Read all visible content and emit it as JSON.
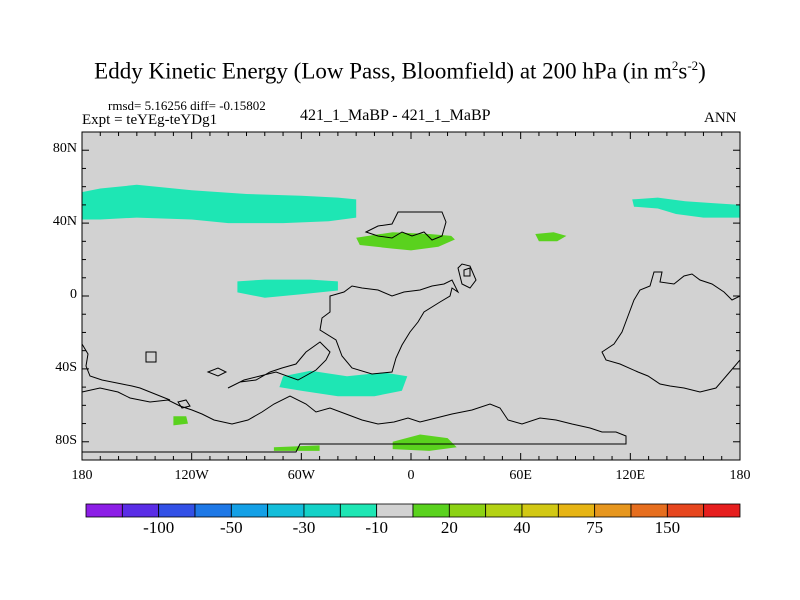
{
  "header": {
    "title_main": "Eddy Kinetic Energy (Low Pass, Bloomfield) at 200 hPa (in m",
    "title_exp1": "2",
    "title_mid": "s",
    "title_exp2": "-2",
    "title_end": ")",
    "stats": "rmsd= 5.16256 diff= -0.15802",
    "expt": "Expt = teYEg-teYDg1",
    "cases": "421_1_MaBP - 421_1_MaBP",
    "season": "ANN"
  },
  "chart_data": {
    "type": "contour-map",
    "projection": "cylindrical-equidistant",
    "lon_range": [
      -180,
      180
    ],
    "lat_range": [
      -90,
      90
    ],
    "x_ticks": [
      {
        "lon": -180,
        "label": "180"
      },
      {
        "lon": -120,
        "label": "120W"
      },
      {
        "lon": -60,
        "label": "60W"
      },
      {
        "lon": 0,
        "label": "0"
      },
      {
        "lon": 60,
        "label": "60E"
      },
      {
        "lon": 120,
        "label": "120E"
      },
      {
        "lon": 180,
        "label": "180"
      }
    ],
    "y_ticks": [
      {
        "lat": 80,
        "label": "80N"
      },
      {
        "lat": 40,
        "label": "40N"
      },
      {
        "lat": 0,
        "label": "0"
      },
      {
        "lat": -40,
        "label": "40S"
      },
      {
        "lat": -80,
        "label": "80S"
      }
    ],
    "background_color": "#d2d2d2",
    "colorbar": {
      "colors": [
        "#8c1ee6",
        "#5a2de6",
        "#3250e6",
        "#1e78e6",
        "#14a0e6",
        "#14beda",
        "#14d2c8",
        "#1ee6b4",
        "#d2d2d2",
        "#5ad21e",
        "#8cd214",
        "#b4d214",
        "#d2c814",
        "#e6b414",
        "#e6961e",
        "#e66e1e",
        "#e6461e",
        "#e61e1e"
      ],
      "labels": [
        {
          "boundary": 1,
          "text": "-100"
        },
        {
          "boundary": 3,
          "text": "-50"
        },
        {
          "boundary": 5,
          "text": "-30"
        },
        {
          "boundary": 7,
          "text": "-10"
        },
        {
          "boundary": 9,
          "text": "20"
        },
        {
          "boundary": 11,
          "text": "40"
        },
        {
          "boundary": 13,
          "text": "75"
        },
        {
          "boundary": 15,
          "text": "150"
        }
      ]
    },
    "regions": [
      {
        "name": "north-pacific-atlantic-band-negative",
        "level": -10,
        "color": "#1ee6b4",
        "points": [
          [
            -180,
            57
          ],
          [
            -170,
            59
          ],
          [
            -150,
            61
          ],
          [
            -120,
            58
          ],
          [
            -90,
            56
          ],
          [
            -60,
            55
          ],
          [
            -40,
            54
          ],
          [
            -30,
            53
          ],
          [
            -30,
            43
          ],
          [
            -45,
            41
          ],
          [
            -70,
            40
          ],
          [
            -100,
            40
          ],
          [
            -120,
            42
          ],
          [
            -150,
            43
          ],
          [
            -170,
            42
          ],
          [
            -180,
            42
          ]
        ]
      },
      {
        "name": "north-europe-positive",
        "level": 20,
        "color": "#5ad21e",
        "points": [
          [
            -30,
            32
          ],
          [
            -10,
            35
          ],
          [
            10,
            34
          ],
          [
            22,
            33
          ],
          [
            24,
            31
          ],
          [
            15,
            27
          ],
          [
            0,
            25
          ],
          [
            -10,
            26
          ],
          [
            -28,
            28
          ]
        ]
      },
      {
        "name": "east-asia-positive",
        "level": 20,
        "color": "#5ad21e",
        "points": [
          [
            68,
            34
          ],
          [
            78,
            35
          ],
          [
            85,
            33
          ],
          [
            80,
            30
          ],
          [
            70,
            30
          ]
        ]
      },
      {
        "name": "north-pacific-east-negative",
        "level": -10,
        "color": "#1ee6b4",
        "points": [
          [
            121,
            53
          ],
          [
            135,
            54
          ],
          [
            150,
            52
          ],
          [
            165,
            51
          ],
          [
            180,
            50
          ],
          [
            180,
            43
          ],
          [
            170,
            43
          ],
          [
            160,
            43
          ],
          [
            145,
            45
          ],
          [
            135,
            48
          ],
          [
            122,
            49
          ]
        ]
      },
      {
        "name": "equatorial-pacific-negative",
        "level": -10,
        "color": "#1ee6b4",
        "points": [
          [
            -95,
            8
          ],
          [
            -80,
            9
          ],
          [
            -55,
            9
          ],
          [
            -40,
            8
          ],
          [
            -40,
            3
          ],
          [
            -60,
            1
          ],
          [
            -80,
            -1
          ],
          [
            -95,
            2
          ]
        ]
      },
      {
        "name": "south-atlantic-negative",
        "level": -10,
        "color": "#1ee6b4",
        "points": [
          [
            -70,
            -44
          ],
          [
            -55,
            -41
          ],
          [
            -35,
            -44
          ],
          [
            -15,
            -42
          ],
          [
            -2,
            -44
          ],
          [
            -5,
            -52
          ],
          [
            -20,
            -55
          ],
          [
            -40,
            -55
          ],
          [
            -60,
            -52
          ],
          [
            -72,
            -50
          ]
        ]
      },
      {
        "name": "southern-ocean-positive-small",
        "level": 20,
        "color": "#5ad21e",
        "points": [
          [
            -130,
            -66
          ],
          [
            -123,
            -66
          ],
          [
            -122,
            -70
          ],
          [
            -130,
            -71
          ]
        ]
      },
      {
        "name": "antarctic-positive",
        "level": 20,
        "color": "#5ad21e",
        "points": [
          [
            -10,
            -80
          ],
          [
            5,
            -76
          ],
          [
            20,
            -78
          ],
          [
            25,
            -83
          ],
          [
            10,
            -85
          ],
          [
            -10,
            -84
          ]
        ]
      },
      {
        "name": "antarctic-positive-west",
        "level": 20,
        "color": "#5ad21e",
        "points": [
          [
            -75,
            -83
          ],
          [
            -50,
            -82
          ],
          [
            -50,
            -85
          ],
          [
            -75,
            -85
          ]
        ]
      }
    ]
  },
  "colorbar_labels": {
    "l0": "-100",
    "l1": "-50",
    "l2": "-30",
    "l3": "-10",
    "l4": "20",
    "l5": "40",
    "l6": "75",
    "l7": "150"
  }
}
